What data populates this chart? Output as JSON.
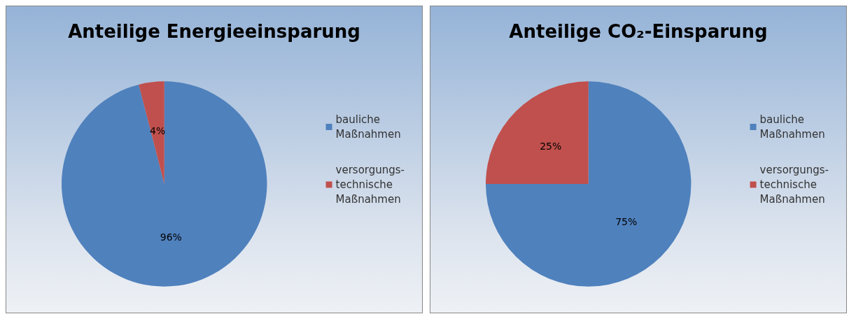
{
  "chart_data": [
    {
      "type": "pie",
      "title": "Anteilige Energieeinsparung",
      "categories": [
        "bauliche\nMaßnahmen",
        "versorgungs-\ntechnische\nMaßnahmen"
      ],
      "values": [
        96,
        4
      ],
      "value_labels": [
        "96%",
        "4%"
      ],
      "colors": [
        "#4f81bd",
        "#c0504d"
      ],
      "legend": "right"
    },
    {
      "type": "pie",
      "title": "Anteilige CO₂-Einsparung",
      "categories": [
        "bauliche\nMaßnahmen",
        "versorgungs-\ntechnische\nMaßnahmen"
      ],
      "values": [
        75,
        25
      ],
      "value_labels": [
        "75%",
        "25%"
      ],
      "colors": [
        "#4f81bd",
        "#c0504d"
      ],
      "legend": "right"
    }
  ]
}
